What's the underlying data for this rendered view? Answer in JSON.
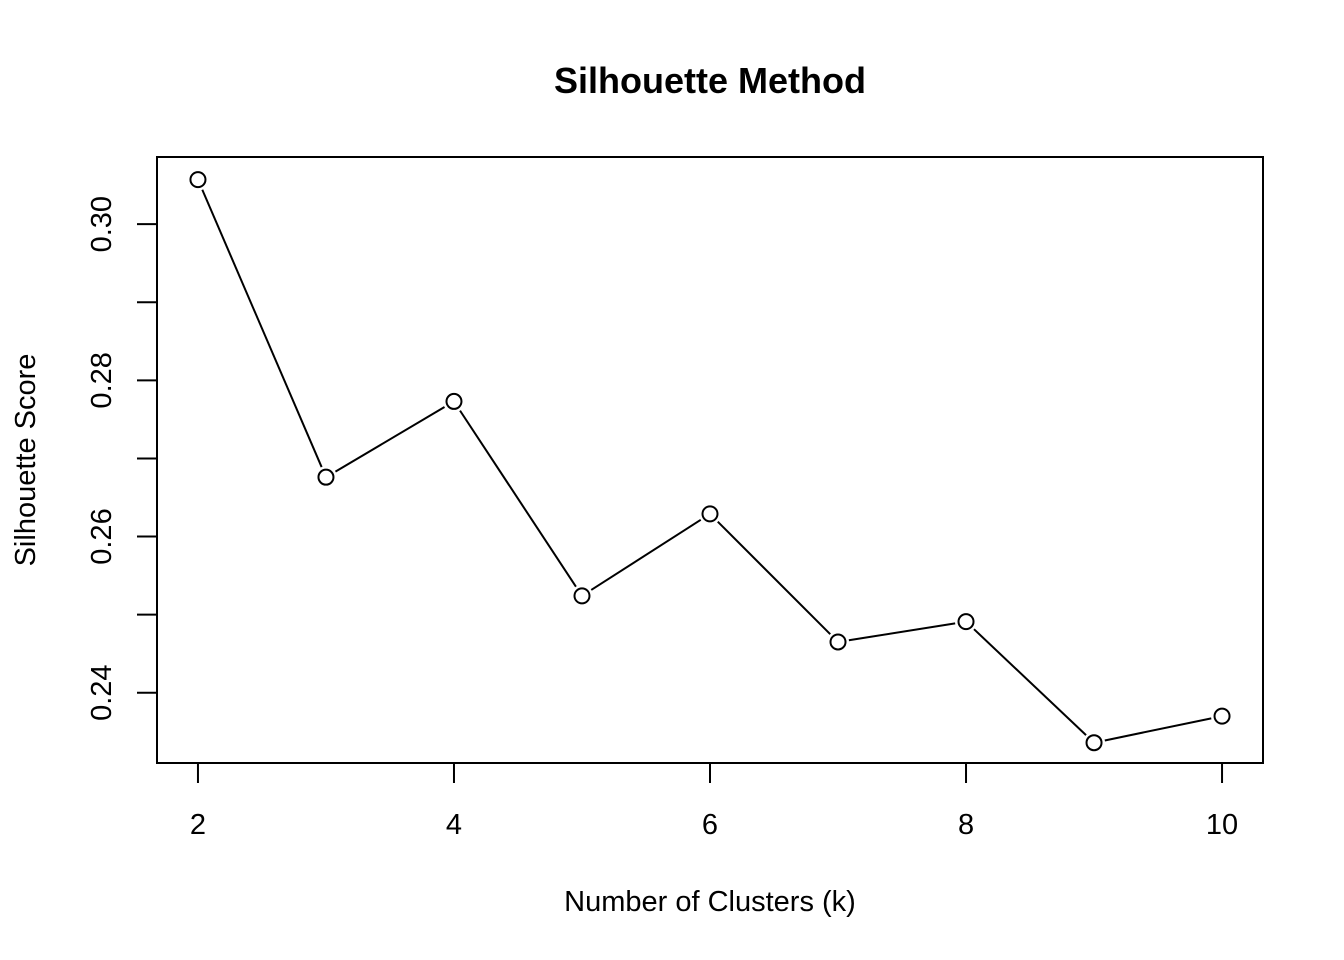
{
  "chart_data": {
    "type": "line",
    "title": "Silhouette Method",
    "xlabel": "Number of Clusters (k)",
    "ylabel": "Silhouette Score",
    "x": [
      2,
      3,
      4,
      5,
      6,
      7,
      8,
      9,
      10
    ],
    "series": [
      {
        "values": [
          0.3057,
          0.2676,
          0.2773,
          0.2524,
          0.2629,
          0.2465,
          0.2491,
          0.2336,
          0.237
        ]
      }
    ],
    "xlim": [
      1.68,
      10.32
    ],
    "ylim": [
      0.231,
      0.3086
    ],
    "x_ticks": [
      2,
      4,
      6,
      8,
      10
    ],
    "y_ticks": [
      0.24,
      0.25,
      0.26,
      0.27,
      0.28,
      0.29,
      0.3
    ],
    "y_tick_labels": [
      "0.24",
      "",
      "0.26",
      "",
      "0.28",
      "",
      "0.30"
    ],
    "marker": "open-circle",
    "grid": false,
    "legend": "none"
  }
}
